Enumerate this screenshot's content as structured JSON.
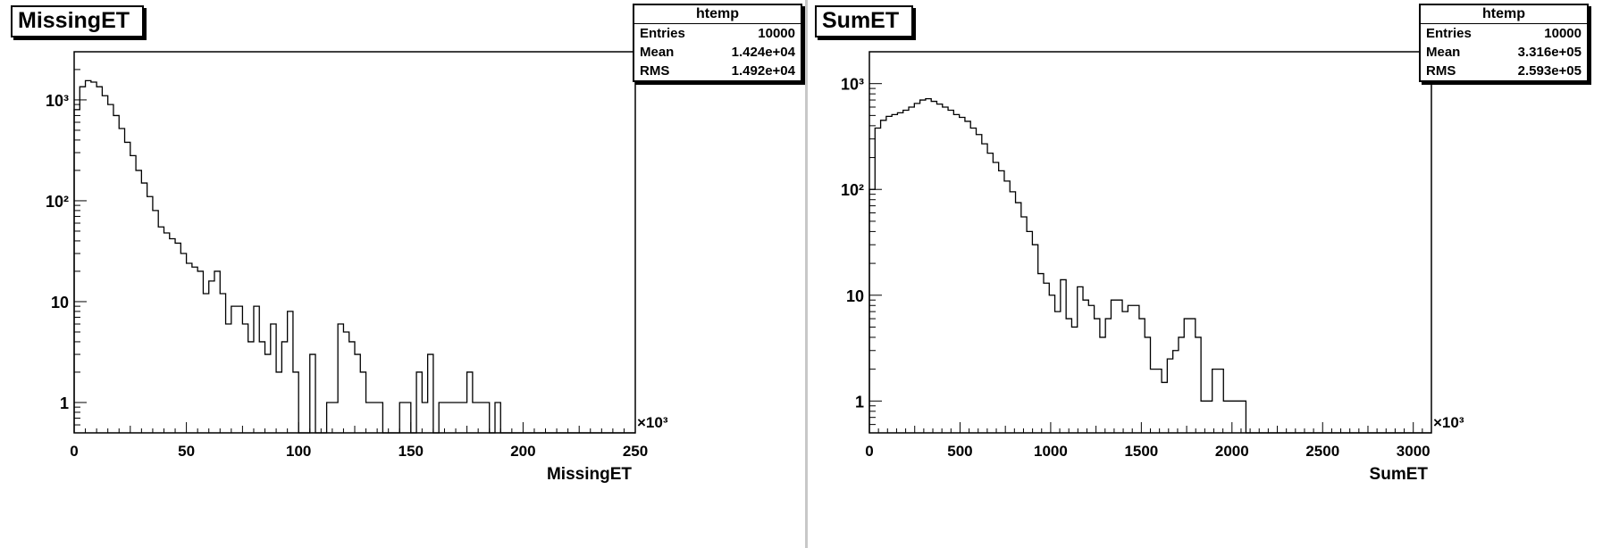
{
  "panels": [
    {
      "id": "left",
      "title": "MissingET",
      "stats": {
        "name": "htemp",
        "rows": [
          {
            "label": "Entries",
            "value": "10000"
          },
          {
            "label": "Mean",
            "value": "1.424e+04"
          },
          {
            "label": "RMS",
            "value": "1.492e+04"
          }
        ]
      }
    },
    {
      "id": "right",
      "title": "SumET",
      "stats": {
        "name": "htemp",
        "rows": [
          {
            "label": "Entries",
            "value": "10000"
          },
          {
            "label": "Mean",
            "value": "3.316e+05"
          },
          {
            "label": "RMS",
            "value": "2.593e+05"
          }
        ]
      }
    }
  ],
  "chart_data": [
    {
      "type": "bar",
      "title": "MissingET",
      "xlabel": "MissingET",
      "ylabel": "",
      "x_multiplier": "×10³",
      "y_scale": "log",
      "xlim": [
        0,
        250
      ],
      "ylim": [
        0.5,
        3000
      ],
      "bin_width": 2.5,
      "x_ticks": [
        0,
        50,
        100,
        150,
        200,
        250
      ],
      "y_ticks": [
        {
          "value": 1,
          "label": "1"
        },
        {
          "value": 10,
          "label": "10"
        },
        {
          "value": 100,
          "label": "10²"
        },
        {
          "value": 1000,
          "label": "10³"
        }
      ],
      "grid": false,
      "values": [
        800,
        1350,
        1550,
        1500,
        1350,
        1100,
        900,
        700,
        520,
        380,
        280,
        200,
        150,
        110,
        80,
        55,
        48,
        42,
        38,
        30,
        24,
        22,
        20,
        12,
        16,
        20,
        12,
        6,
        9,
        9,
        6,
        4,
        9,
        4,
        3,
        6,
        2,
        4,
        8,
        2,
        0,
        0,
        3,
        0,
        0,
        1,
        1,
        6,
        5,
        4,
        3,
        2,
        1,
        1,
        1,
        0,
        0,
        0,
        1,
        1,
        0,
        2,
        1,
        3,
        0,
        1,
        1,
        1,
        1,
        1,
        2,
        1,
        1,
        1,
        0,
        1,
        0,
        0,
        0,
        0,
        0,
        0,
        0,
        0,
        0,
        0,
        0,
        0,
        0,
        0,
        0,
        0,
        0,
        0,
        0,
        0,
        0,
        0,
        0,
        0
      ]
    },
    {
      "type": "bar",
      "title": "SumET",
      "xlabel": "SumET",
      "ylabel": "",
      "x_multiplier": "×10³",
      "y_scale": "log",
      "xlim": [
        0,
        3100
      ],
      "ylim": [
        0.5,
        2000
      ],
      "bin_width": 31,
      "x_ticks": [
        0,
        500,
        1000,
        1500,
        2000,
        2500,
        3000
      ],
      "y_ticks": [
        {
          "value": 1,
          "label": "1"
        },
        {
          "value": 10,
          "label": "10"
        },
        {
          "value": 100,
          "label": "10²"
        },
        {
          "value": 1000,
          "label": "10³"
        }
      ],
      "grid": false,
      "values": [
        100,
        380,
        450,
        490,
        510,
        530,
        560,
        600,
        650,
        700,
        720,
        680,
        640,
        600,
        560,
        510,
        480,
        440,
        380,
        330,
        270,
        220,
        180,
        150,
        120,
        95,
        75,
        55,
        40,
        30,
        16,
        13,
        10,
        7,
        14,
        6,
        5,
        12,
        9,
        8,
        6,
        4,
        6,
        9,
        9,
        7,
        8,
        8,
        6,
        4,
        2,
        2,
        1.5,
        2.5,
        3,
        4,
        6,
        6,
        4,
        1,
        1,
        2,
        2,
        1,
        1,
        1,
        1,
        0.5,
        0.5,
        0.5,
        0.5,
        0.5,
        0.5,
        0.5,
        0.5,
        0.5,
        0.5,
        0.5,
        0.5,
        0.5,
        0.5,
        0.5,
        0.5,
        0.5,
        0.5,
        0.5,
        0.5,
        0.5,
        0.5,
        0.5,
        0.5,
        0.5,
        0.5,
        0.5,
        0.5,
        0.5,
        0.5,
        0.5,
        0.5,
        0.5
      ]
    }
  ]
}
